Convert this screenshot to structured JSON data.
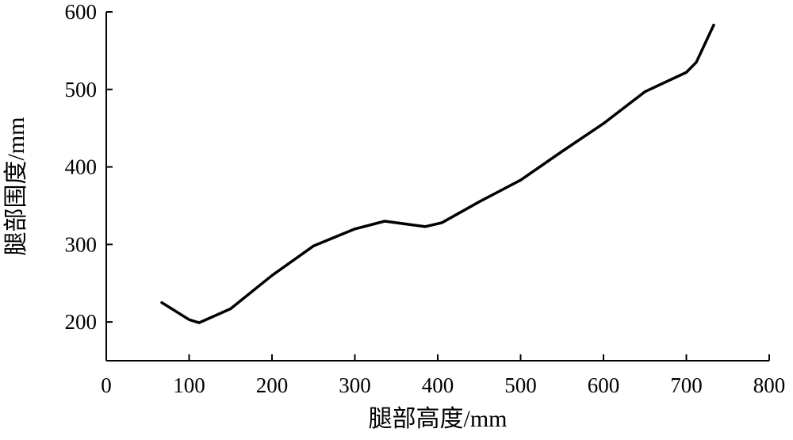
{
  "chart_data": {
    "type": "line",
    "x_label": "腿部高度/mm",
    "y_label": "腿部围度/mm",
    "x": [
      67,
      100,
      112,
      150,
      200,
      250,
      300,
      336,
      385,
      405,
      450,
      500,
      550,
      600,
      650,
      700,
      712,
      733
    ],
    "series": [
      {
        "color": "#000000",
        "values": [
          225,
          203,
          199,
          217,
          260,
          298,
          320,
          330,
          323,
          328,
          355,
          383,
          420,
          456,
          497,
          522,
          535,
          583
        ]
      }
    ],
    "xlim": [
      0,
      800
    ],
    "xticks": [
      0,
      100,
      200,
      300,
      400,
      500,
      600,
      700,
      800
    ],
    "ylim": [
      150,
      600
    ],
    "yticks": [
      200,
      300,
      400,
      500,
      600
    ],
    "grid": false
  }
}
